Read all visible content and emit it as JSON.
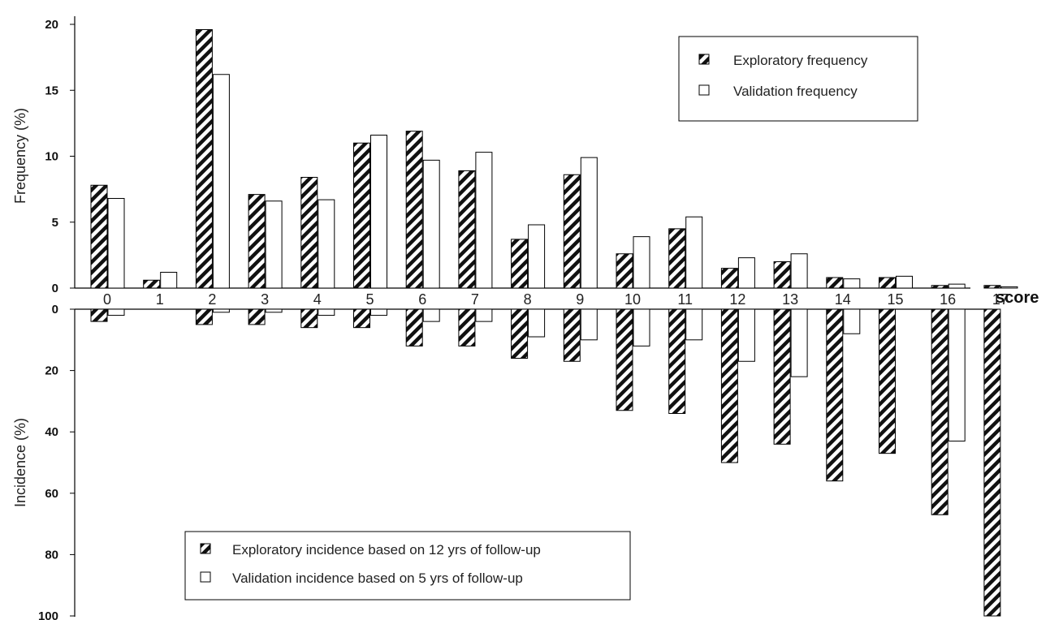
{
  "chart_data": {
    "type": "bar",
    "x_title": "score",
    "categories": [
      "0",
      "1",
      "2",
      "3",
      "4",
      "5",
      "6",
      "7",
      "8",
      "9",
      "10",
      "11",
      "12",
      "13",
      "14",
      "15",
      "16",
      "17"
    ],
    "top_panel": {
      "ylabel": "Frequency (%)",
      "ylim": [
        0,
        20
      ],
      "yticks": [
        "0",
        "5",
        "10",
        "15",
        "20"
      ],
      "series": [
        {
          "name": "Exploratory frequency",
          "pattern": "hatched",
          "values": [
            7.8,
            0.6,
            19.6,
            7.1,
            8.4,
            11.0,
            11.9,
            8.9,
            3.7,
            8.6,
            2.6,
            4.5,
            1.5,
            2.0,
            0.8,
            0.8,
            0.2,
            0.2
          ]
        },
        {
          "name": "Validation frequency",
          "pattern": "open",
          "values": [
            6.8,
            1.2,
            16.2,
            6.6,
            6.7,
            11.6,
            9.7,
            10.3,
            4.8,
            9.9,
            3.9,
            5.4,
            2.3,
            2.6,
            0.7,
            0.9,
            0.3,
            0.1
          ]
        }
      ],
      "legend": "top-right"
    },
    "bottom_panel": {
      "ylabel": "Incidence (%)",
      "ylim": [
        0,
        100
      ],
      "inverted": true,
      "yticks": [
        "0",
        "20",
        "40",
        "60",
        "80",
        "100"
      ],
      "series": [
        {
          "name": "Exploratory incidence based on 12 yrs of follow-up",
          "pattern": "hatched",
          "values": [
            4,
            0,
            5,
            5,
            6,
            6,
            12,
            12,
            16,
            17,
            33,
            34,
            50,
            44,
            56,
            47,
            67,
            100
          ]
        },
        {
          "name": "Validation incidence based on 5 yrs of follow-up",
          "pattern": "open",
          "values": [
            2,
            0,
            1,
            1,
            2,
            2,
            4,
            4,
            9,
            10,
            12,
            10,
            17,
            22,
            8,
            0,
            43,
            0
          ]
        }
      ],
      "legend": "bottom-left"
    },
    "colors": {
      "bar_stroke": "#000000",
      "bar_fill_open": "#ffffff"
    }
  }
}
